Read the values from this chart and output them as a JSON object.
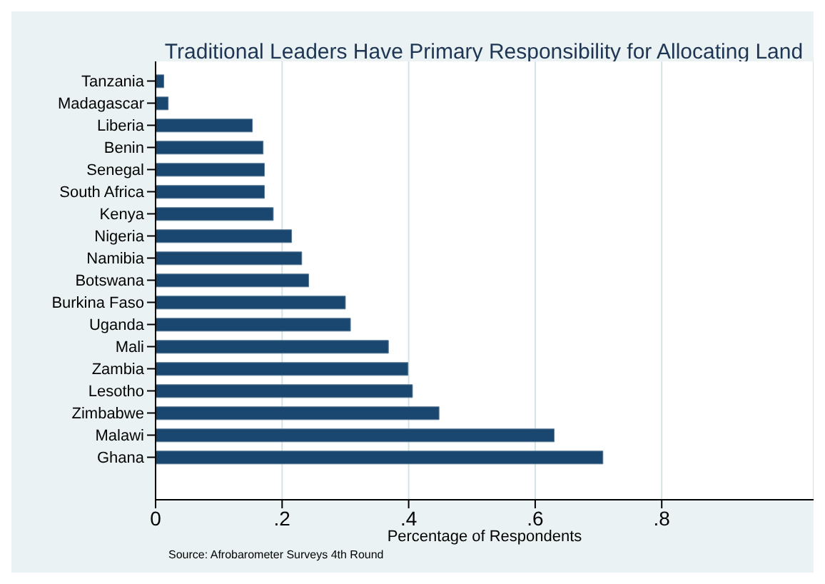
{
  "chart_data": {
    "type": "bar",
    "orientation": "horizontal",
    "title": "Traditional Leaders Have Primary Responsibility for Allocating Land",
    "xlabel": "Percentage of Respondents",
    "categories": [
      "Tanzania",
      "Madagascar",
      "Liberia",
      "Benin",
      "Senegal",
      "South Africa",
      "Kenya",
      "Nigeria",
      "Namibia",
      "Botswana",
      "Burkina Faso",
      "Uganda",
      "Mali",
      "Zambia",
      "Lesotho",
      "Zimbabwe",
      "Malawi",
      "Ghana"
    ],
    "values": [
      0.013,
      0.02,
      0.153,
      0.17,
      0.172,
      0.172,
      0.186,
      0.215,
      0.231,
      0.242,
      0.3,
      0.308,
      0.368,
      0.399,
      0.406,
      0.448,
      0.63,
      0.707
    ],
    "color": "#1a476f",
    "xlim": [
      0,
      1.04
    ],
    "xticks": [
      {
        "value": 0,
        "label": "0"
      },
      {
        "value": 0.2,
        "label": ".2"
      },
      {
        "value": 0.4,
        "label": ".4"
      },
      {
        "value": 0.6,
        "label": ".6"
      },
      {
        "value": 0.8,
        "label": ".8"
      }
    ],
    "grid": "x",
    "annotations": [
      "Source: Afrobarometer Surveys 4th Round"
    ]
  }
}
